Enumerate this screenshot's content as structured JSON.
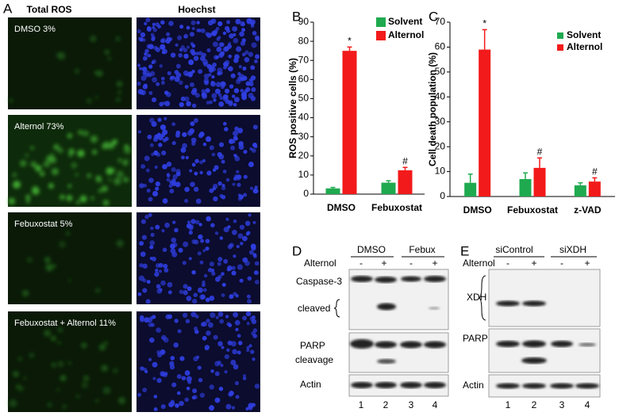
{
  "panels": {
    "a": {
      "letter": "A",
      "col1": "Total ROS",
      "col2": "Hoechst",
      "labels": [
        "DMSO 3%",
        "Alternol 73%",
        "Febuxostat 5%",
        "Febuxostat + Alternol 11%"
      ]
    },
    "b": {
      "letter": "B"
    },
    "c": {
      "letter": "C"
    },
    "d": {
      "letter": "D",
      "groups": [
        "DMSO",
        "Febux"
      ],
      "treatment": "Alternol",
      "signs": [
        "-",
        "+",
        "-",
        "+"
      ],
      "rows": [
        "Caspase-3",
        "cleaved",
        "PARP",
        "cleavage",
        "Actin"
      ],
      "lanes": [
        "1",
        "2",
        "3",
        "4"
      ]
    },
    "e": {
      "letter": "E",
      "groups": [
        "siControl",
        "siXDH"
      ],
      "treatment": "Alternol",
      "signs": [
        "-",
        "+",
        "-",
        "+"
      ],
      "rows": [
        "XDH",
        "PARP",
        "Actin"
      ],
      "lanes": [
        "1",
        "2",
        "3",
        "4"
      ]
    }
  },
  "chart_data": [
    {
      "type": "bar",
      "ylabel": "ROS positive cells (%)",
      "categories": [
        "DMSO",
        "Febuxostat"
      ],
      "series": [
        {
          "name": "Solvent",
          "color": "#1faa4f",
          "values": [
            3,
            6
          ],
          "errors": [
            0.5,
            1
          ]
        },
        {
          "name": "Alternol",
          "color": "#f21a1a",
          "values": [
            75,
            12.5
          ],
          "errors": [
            2,
            1.5
          ]
        }
      ],
      "ylim": [
        0,
        90
      ],
      "yticks": [
        0,
        10,
        20,
        30,
        40,
        50,
        60,
        70,
        80,
        90
      ],
      "legend": "upper right",
      "annotations": [
        {
          "text": "*",
          "category": "DMSO",
          "series": "Alternol"
        },
        {
          "text": "#",
          "category": "Febuxostat",
          "series": "Alternol"
        }
      ]
    },
    {
      "type": "bar",
      "ylabel": "Cell death population (%)",
      "categories": [
        "DMSO",
        "Febuxostat",
        "z-VAD"
      ],
      "series": [
        {
          "name": "Solvent",
          "color": "#1faa4f",
          "values": [
            5.5,
            7,
            4.5
          ],
          "errors": [
            3.5,
            2.5,
            1
          ]
        },
        {
          "name": "Alternol",
          "color": "#f21a1a",
          "values": [
            59,
            11.5,
            6
          ],
          "errors": [
            8,
            4,
            1.5
          ]
        }
      ],
      "ylim": [
        0,
        70
      ],
      "yticks": [
        0,
        10,
        20,
        30,
        40,
        50,
        60,
        70
      ],
      "legend": "upper right",
      "annotations": [
        {
          "text": "*",
          "category": "DMSO",
          "series": "Alternol"
        },
        {
          "text": "#",
          "category": "Febuxostat",
          "series": "Alternol"
        },
        {
          "text": "#",
          "category": "z-VAD",
          "series": "Alternol"
        }
      ]
    }
  ]
}
